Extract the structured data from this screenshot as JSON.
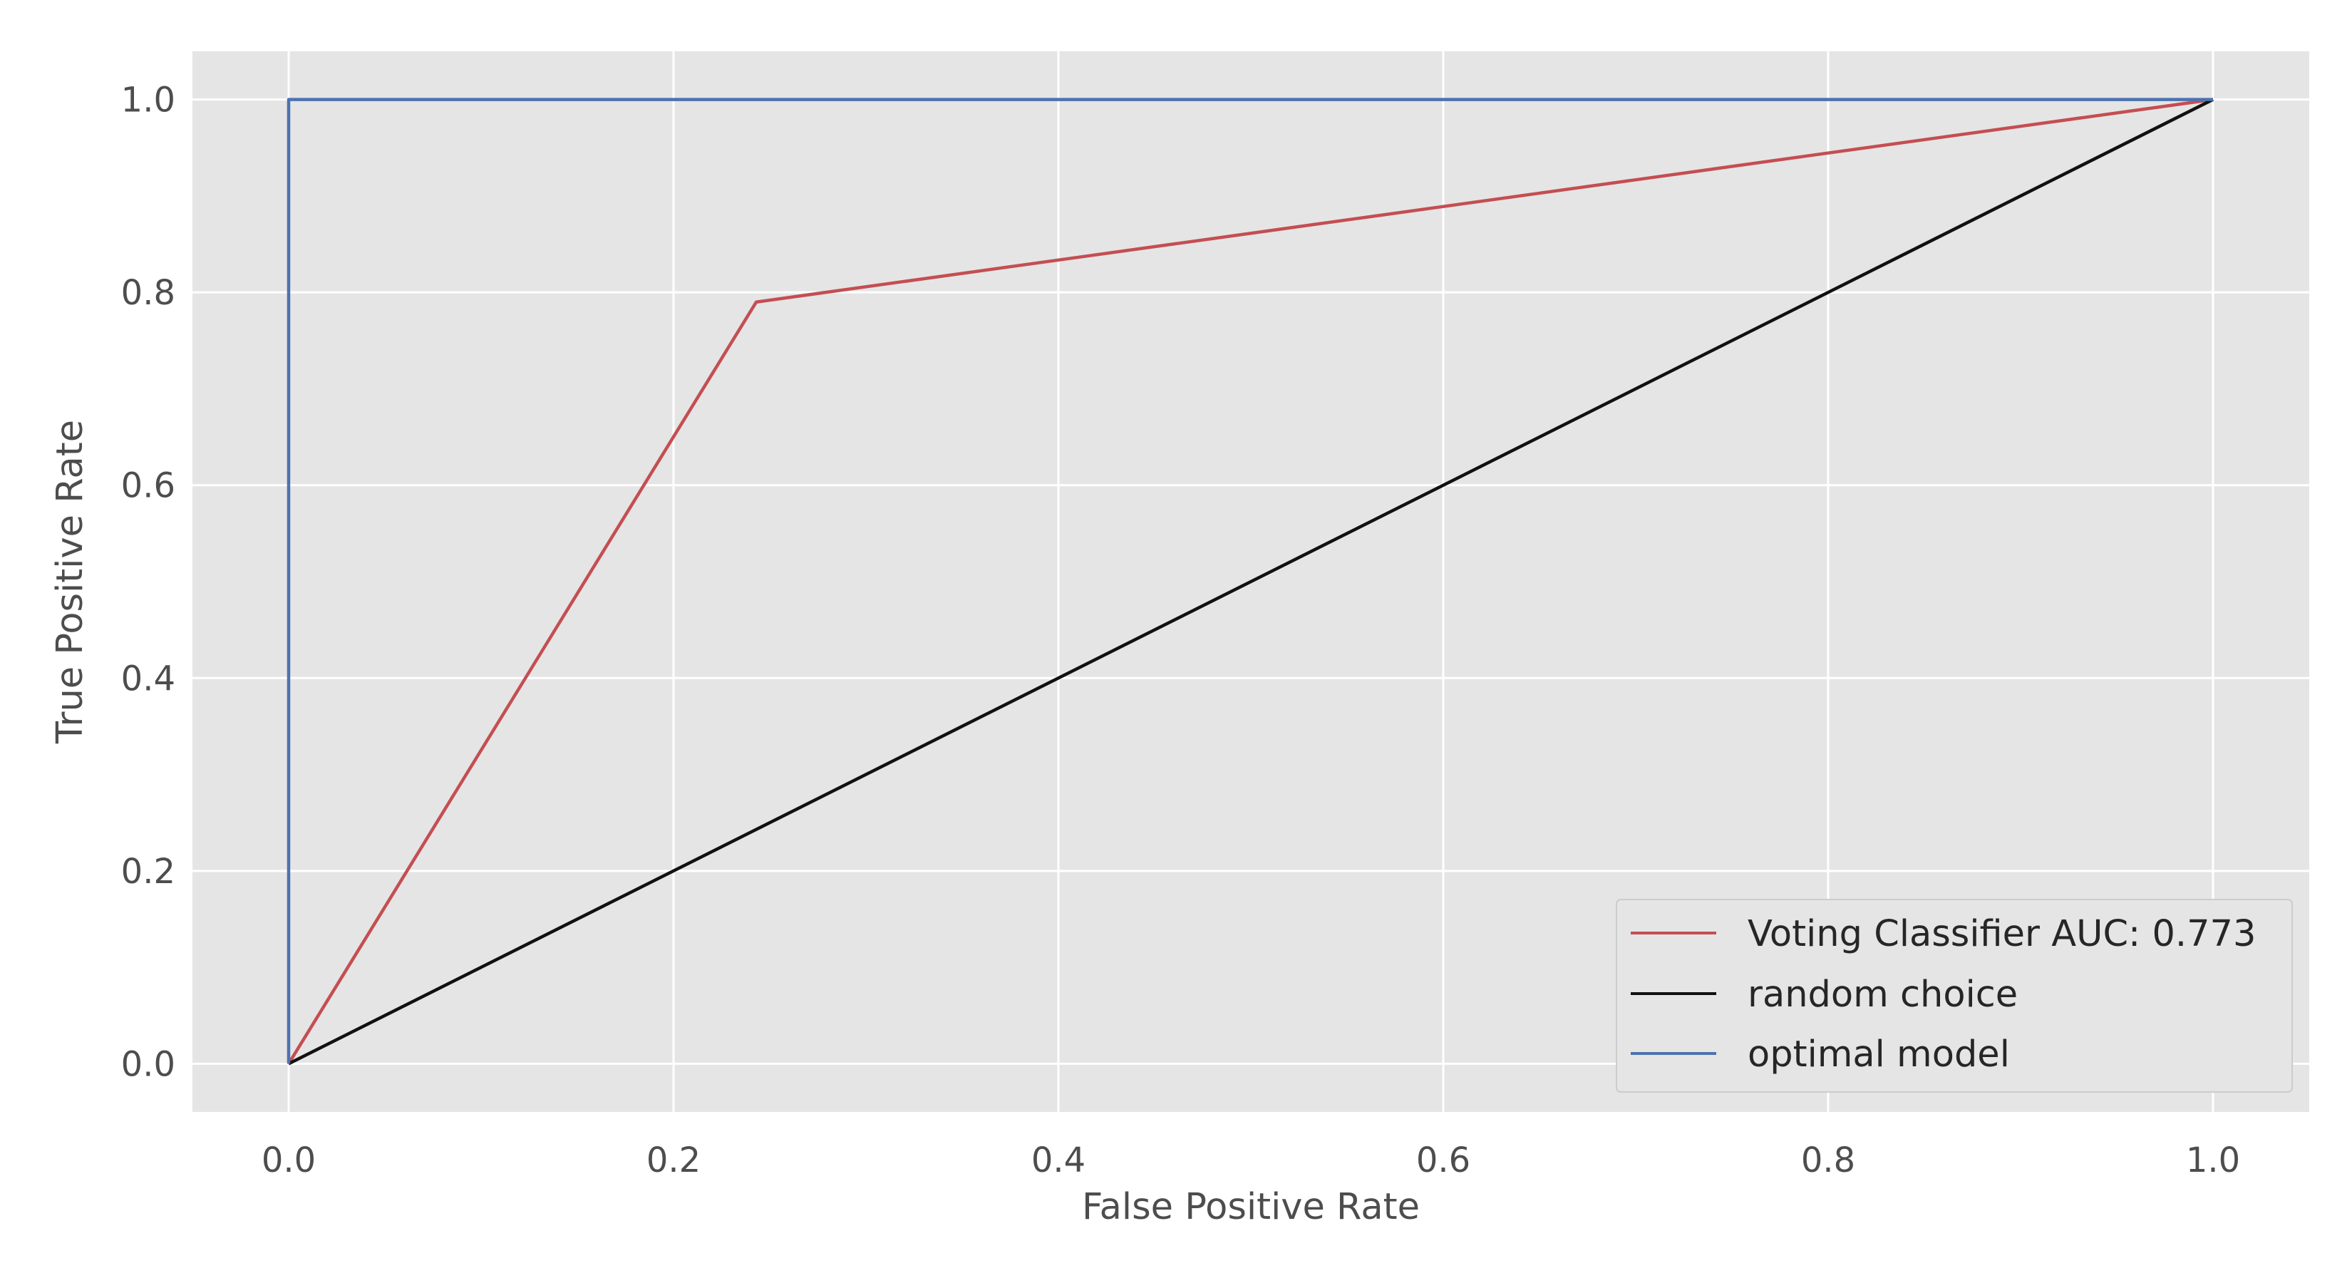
{
  "chart_data": {
    "type": "line",
    "title": "",
    "xlabel": "False Positive Rate",
    "ylabel": "True Positive Rate",
    "xlim": [
      -0.05,
      1.05
    ],
    "ylim": [
      -0.05,
      1.05
    ],
    "xticks": [
      0.0,
      0.2,
      0.4,
      0.6,
      0.8,
      1.0
    ],
    "yticks": [
      0.0,
      0.2,
      0.4,
      0.6,
      0.8,
      1.0
    ],
    "xtick_labels": [
      "0.0",
      "0.2",
      "0.4",
      "0.6",
      "0.8",
      "1.0"
    ],
    "ytick_labels": [
      "0.0",
      "0.2",
      "0.4",
      "0.6",
      "0.8",
      "1.0"
    ],
    "grid": true,
    "legend_position": "lower-right",
    "background": "#e5e5e5",
    "series": [
      {
        "name": "Voting Classifier AUC: 0.773",
        "color": "#c44e52",
        "x": [
          0.0,
          0.243,
          1.0
        ],
        "y": [
          0.0,
          0.79,
          1.0
        ]
      },
      {
        "name": "random choice",
        "color": "#111111",
        "x": [
          0.0,
          1.0
        ],
        "y": [
          0.0,
          1.0
        ]
      },
      {
        "name": "optimal model",
        "color": "#4c72b0",
        "x": [
          0.0,
          0.0,
          1.0
        ],
        "y": [
          0.0,
          1.0,
          1.0
        ]
      }
    ]
  }
}
